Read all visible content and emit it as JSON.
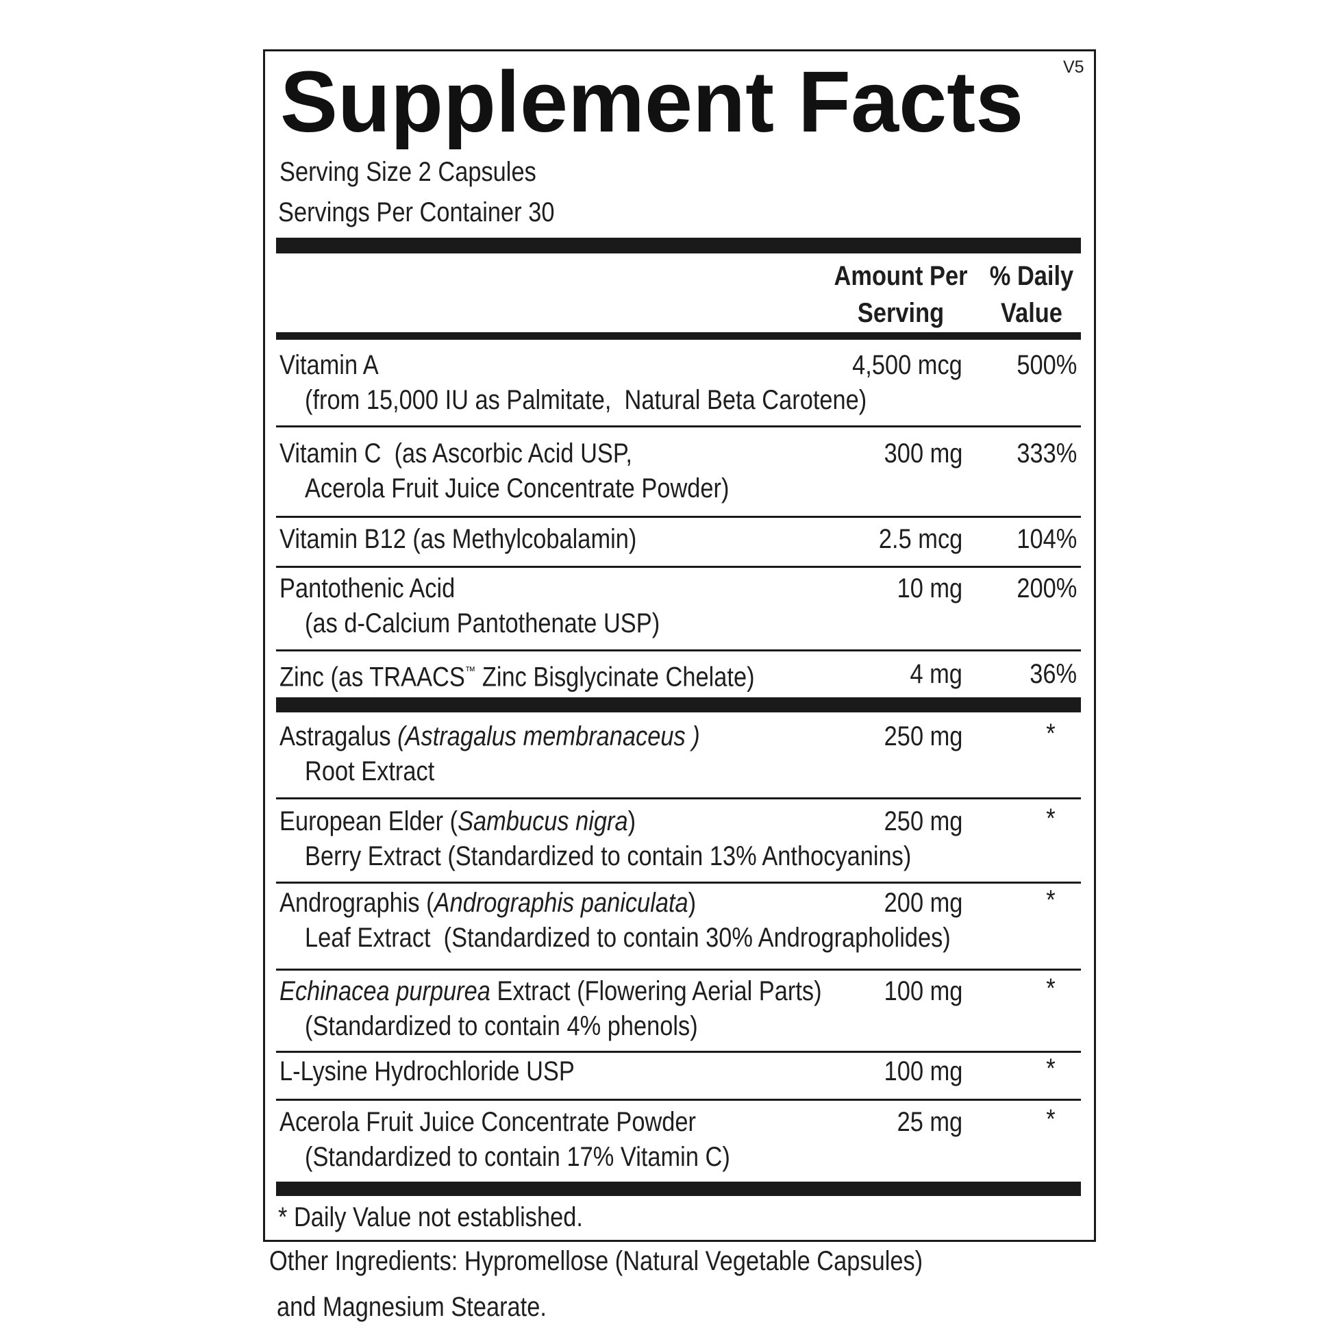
{
  "label": {
    "title": "Supplement Facts",
    "version": "V5",
    "serving_size": "Serving Size 2 Capsules",
    "servings_per_container": "Servings Per Container 30",
    "amount_header": [
      "Amount Per",
      "Serving"
    ],
    "daily_value_header": [
      "% Daily",
      "Value"
    ],
    "rows": [
      {
        "name": [
          {
            "text": "Vitamin A"
          }
        ],
        "detail": [
          {
            "text": "(from 15,000 IU as Palmitate,  Natural Beta Carotene)"
          }
        ],
        "amount": "4,500 mcg",
        "daily_value": "500%"
      },
      {
        "name": [
          {
            "text": "Vitamin C  (as Ascorbic Acid USP,"
          }
        ],
        "detail": [
          {
            "text": "Acerola Fruit Juice Concentrate Powder)"
          }
        ],
        "amount": "300 mg",
        "daily_value": "333%"
      },
      {
        "name": [
          {
            "text": "Vitamin B12 (as Methylcobalamin)"
          }
        ],
        "amount": "2.5 mcg",
        "daily_value": "104%"
      },
      {
        "name": [
          {
            "text": "Pantothenic Acid"
          }
        ],
        "detail": [
          {
            "text": "(as d-Calcium Pantothenate USP)"
          }
        ],
        "amount": "10 mg",
        "daily_value": "200%"
      },
      {
        "name": [
          {
            "text": "Zinc (as TRAACS"
          },
          {
            "text": "™",
            "style": "sup"
          },
          {
            "text": " Zinc Bisglycinate Chelate)"
          }
        ],
        "amount": "4 mg",
        "daily_value": "36%"
      },
      {
        "name": [
          {
            "text": "Astragalus "
          },
          {
            "text": "(Astragalus membranaceus )",
            "style": "italic"
          }
        ],
        "detail": [
          {
            "text": "Root Extract"
          }
        ],
        "amount": "250 mg",
        "daily_value": "*"
      },
      {
        "name": [
          {
            "text": "European Elder ("
          },
          {
            "text": "Sambucus nigra",
            "style": "italic"
          },
          {
            "text": ")"
          }
        ],
        "detail": [
          {
            "text": "Berry Extract (Standardized to contain 13% Anthocyanins)"
          }
        ],
        "amount": "250 mg",
        "daily_value": "*"
      },
      {
        "name": [
          {
            "text": "Andrographis ("
          },
          {
            "text": "Andrographis paniculata",
            "style": "italic"
          },
          {
            "text": ")"
          }
        ],
        "detail": [
          {
            "text": "Leaf Extract  (Standardized to contain 30% Andrographolides)"
          }
        ],
        "amount": "200 mg",
        "daily_value": "*"
      },
      {
        "name": [
          {
            "text": "Echinacea purpurea",
            "style": "italic"
          },
          {
            "text": " Extract (Flowering Aerial Parts)"
          }
        ],
        "detail": [
          {
            "text": "(Standardized to contain 4% phenols)"
          }
        ],
        "amount": "100 mg",
        "daily_value": "*"
      },
      {
        "name": [
          {
            "text": "L-Lysine Hydrochloride USP"
          }
        ],
        "amount": "100 mg",
        "daily_value": "*"
      },
      {
        "name": [
          {
            "text": "Acerola Fruit Juice Concentrate Powder"
          }
        ],
        "detail": [
          {
            "text": "(Standardized to contain 17% Vitamin C)"
          }
        ],
        "amount": "25 mg",
        "daily_value": "*"
      }
    ],
    "footnote": "* Daily Value not established.",
    "other_ingredients": [
      "Other Ingredients: Hypromellose (Natural Vegetable Capsules)",
      "and Magnesium Stearate."
    ]
  }
}
